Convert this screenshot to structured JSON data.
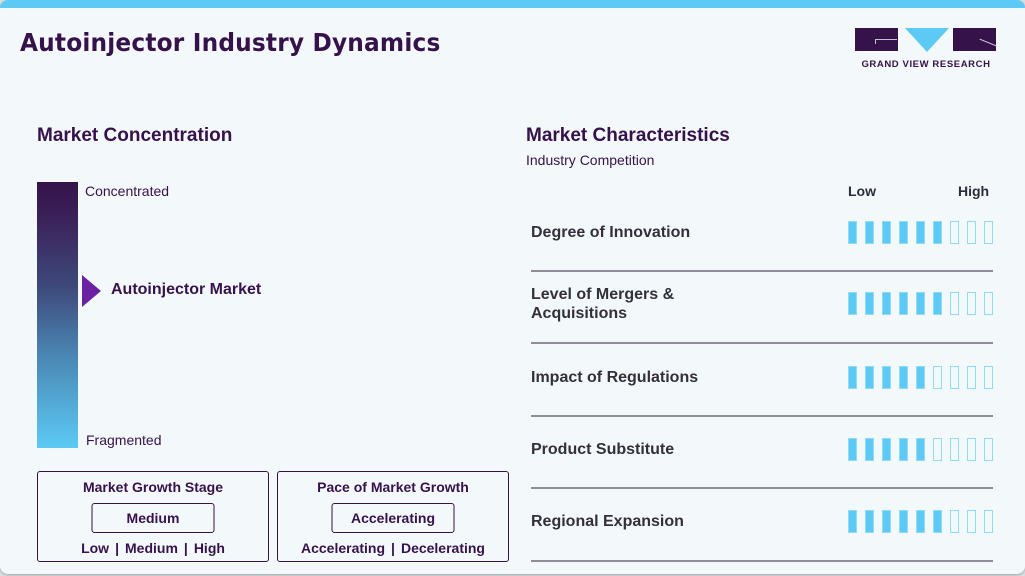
{
  "header": {
    "title": "Autoinjector Industry Dynamics",
    "logo_text": "GRAND VIEW RESEARCH"
  },
  "colors": {
    "accent_blue": "#5ccaf5",
    "brand_purple": "#36124a",
    "pointer_purple": "#6b22a2"
  },
  "concentration": {
    "title": "Market Concentration",
    "top_label": "Concentrated",
    "bottom_label": "Fragmented",
    "marker_label": "Autoinjector Market"
  },
  "growth_stage": {
    "title": "Market Growth Stage",
    "value": "Medium",
    "options": [
      "Low",
      "Medium",
      "High"
    ]
  },
  "growth_pace": {
    "title": "Pace of Market Growth",
    "value": "Accelerating",
    "options": [
      "Accelerating",
      "Decelerating"
    ]
  },
  "characteristics": {
    "title": "Market Characteristics",
    "subtitle": "Industry Competition",
    "scale_low": "Low",
    "scale_high": "High",
    "max_rating": 9,
    "rows": [
      {
        "label": "Degree of Innovation",
        "rating": 6
      },
      {
        "label": "Level of Mergers & Acquisitions",
        "rating": 6
      },
      {
        "label": "Impact of Regulations",
        "rating": 5
      },
      {
        "label": "Product Substitute",
        "rating": 5
      },
      {
        "label": "Regional Expansion",
        "rating": 6
      }
    ]
  }
}
